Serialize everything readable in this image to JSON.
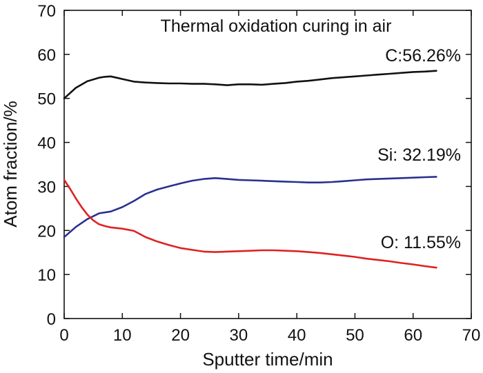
{
  "chart_data": {
    "type": "line",
    "title": "Thermal oxidation curing in air",
    "xlabel": "Sputter time/min",
    "ylabel": "Atom fraction/%",
    "xlim": [
      0,
      70
    ],
    "ylim": [
      0,
      70
    ],
    "xticks": [
      0,
      10,
      20,
      30,
      40,
      50,
      60,
      70
    ],
    "yticks": [
      0,
      10,
      20,
      30,
      40,
      50,
      60,
      70
    ],
    "grid": false,
    "series": [
      {
        "name": "C",
        "label": "C:56.26%",
        "color": "#111111",
        "x": [
          0,
          2,
          4,
          6,
          7,
          8,
          9,
          10,
          12,
          14,
          16,
          18,
          20,
          22,
          24,
          26,
          28,
          30,
          32,
          34,
          36,
          38,
          40,
          42,
          44,
          46,
          48,
          50,
          52,
          54,
          56,
          58,
          60,
          62,
          64
        ],
        "y": [
          50.0,
          52.4,
          53.9,
          54.7,
          54.9,
          55.0,
          54.7,
          54.4,
          53.8,
          53.6,
          53.5,
          53.4,
          53.4,
          53.3,
          53.3,
          53.2,
          53.0,
          53.2,
          53.2,
          53.1,
          53.3,
          53.5,
          53.8,
          54.0,
          54.3,
          54.6,
          54.8,
          55.0,
          55.2,
          55.4,
          55.6,
          55.8,
          56.0,
          56.1,
          56.26
        ]
      },
      {
        "name": "Si",
        "label": "Si: 32.19%",
        "color": "#2b2f8f",
        "x": [
          0,
          2,
          4,
          6,
          8,
          10,
          12,
          14,
          16,
          18,
          20,
          22,
          24,
          26,
          28,
          30,
          32,
          34,
          36,
          38,
          40,
          42,
          44,
          46,
          48,
          50,
          52,
          54,
          56,
          58,
          60,
          62,
          64
        ],
        "y": [
          18.5,
          20.8,
          22.6,
          23.9,
          24.3,
          25.3,
          26.7,
          28.3,
          29.3,
          30.0,
          30.7,
          31.3,
          31.7,
          31.9,
          31.7,
          31.5,
          31.4,
          31.3,
          31.2,
          31.1,
          31.0,
          30.9,
          30.9,
          31.0,
          31.2,
          31.4,
          31.6,
          31.7,
          31.8,
          31.9,
          32.0,
          32.1,
          32.19
        ]
      },
      {
        "name": "O",
        "label": "O: 11.55%",
        "color": "#e02020",
        "x": [
          0,
          1,
          2,
          3,
          4,
          5,
          6,
          7,
          8,
          10,
          12,
          14,
          16,
          18,
          20,
          22,
          24,
          26,
          28,
          30,
          32,
          34,
          36,
          38,
          40,
          42,
          44,
          46,
          48,
          50,
          52,
          54,
          56,
          58,
          60,
          62,
          64
        ],
        "y": [
          31.5,
          29.5,
          27.3,
          25.3,
          23.6,
          22.3,
          21.4,
          21.0,
          20.7,
          20.4,
          19.9,
          18.5,
          17.5,
          16.7,
          16.0,
          15.6,
          15.2,
          15.1,
          15.2,
          15.3,
          15.4,
          15.5,
          15.5,
          15.4,
          15.3,
          15.1,
          14.9,
          14.6,
          14.3,
          14.0,
          13.6,
          13.3,
          13.0,
          12.6,
          12.3,
          11.9,
          11.55
        ]
      }
    ]
  }
}
